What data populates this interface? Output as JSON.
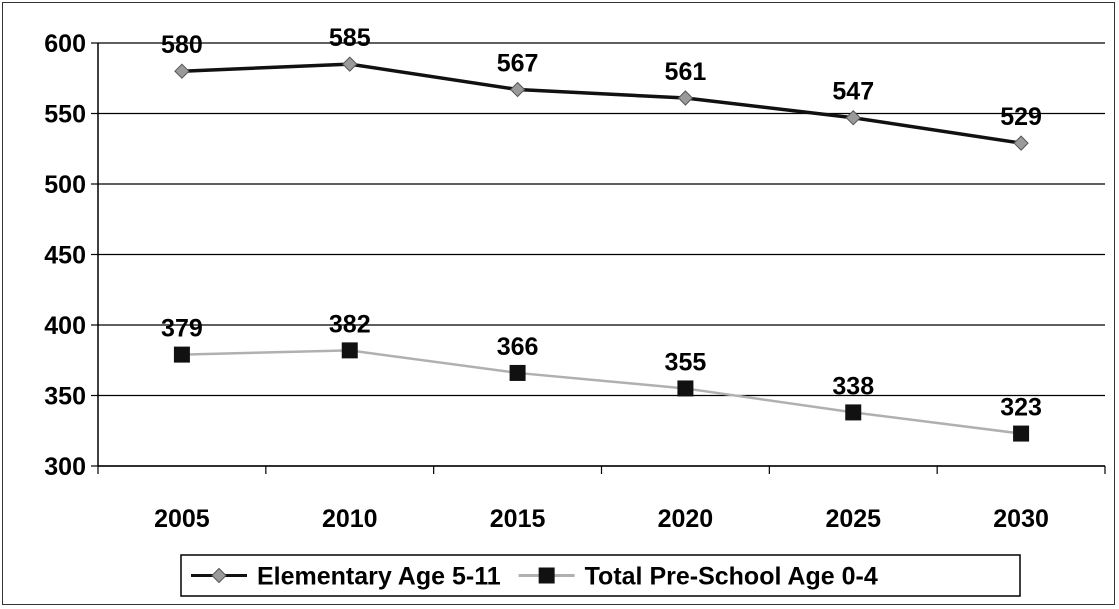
{
  "chart_data": {
    "type": "line",
    "title": "",
    "xlabel": "",
    "ylabel": "",
    "categories": [
      "2005",
      "2010",
      "2015",
      "2020",
      "2025",
      "2030"
    ],
    "ylim": [
      300,
      600
    ],
    "yticks": [
      300,
      350,
      400,
      450,
      500,
      550,
      600
    ],
    "grid": "horizontal",
    "legend_position": "bottom",
    "series": [
      {
        "name": "Elementary Age 5-11",
        "values": [
          580,
          585,
          567,
          561,
          547,
          529
        ],
        "labels": [
          "580",
          "585",
          "567",
          "561",
          "547",
          "529"
        ],
        "marker": "diamond",
        "line_color": "#111111",
        "marker_color": "#9a9a9a"
      },
      {
        "name": "Total Pre-School Age 0-4",
        "values": [
          379,
          382,
          366,
          355,
          338,
          323
        ],
        "labels": [
          "379",
          "382",
          "366",
          "355",
          "338",
          "323"
        ],
        "marker": "square",
        "line_color": "#b0b0b0",
        "marker_color": "#111111"
      }
    ]
  }
}
